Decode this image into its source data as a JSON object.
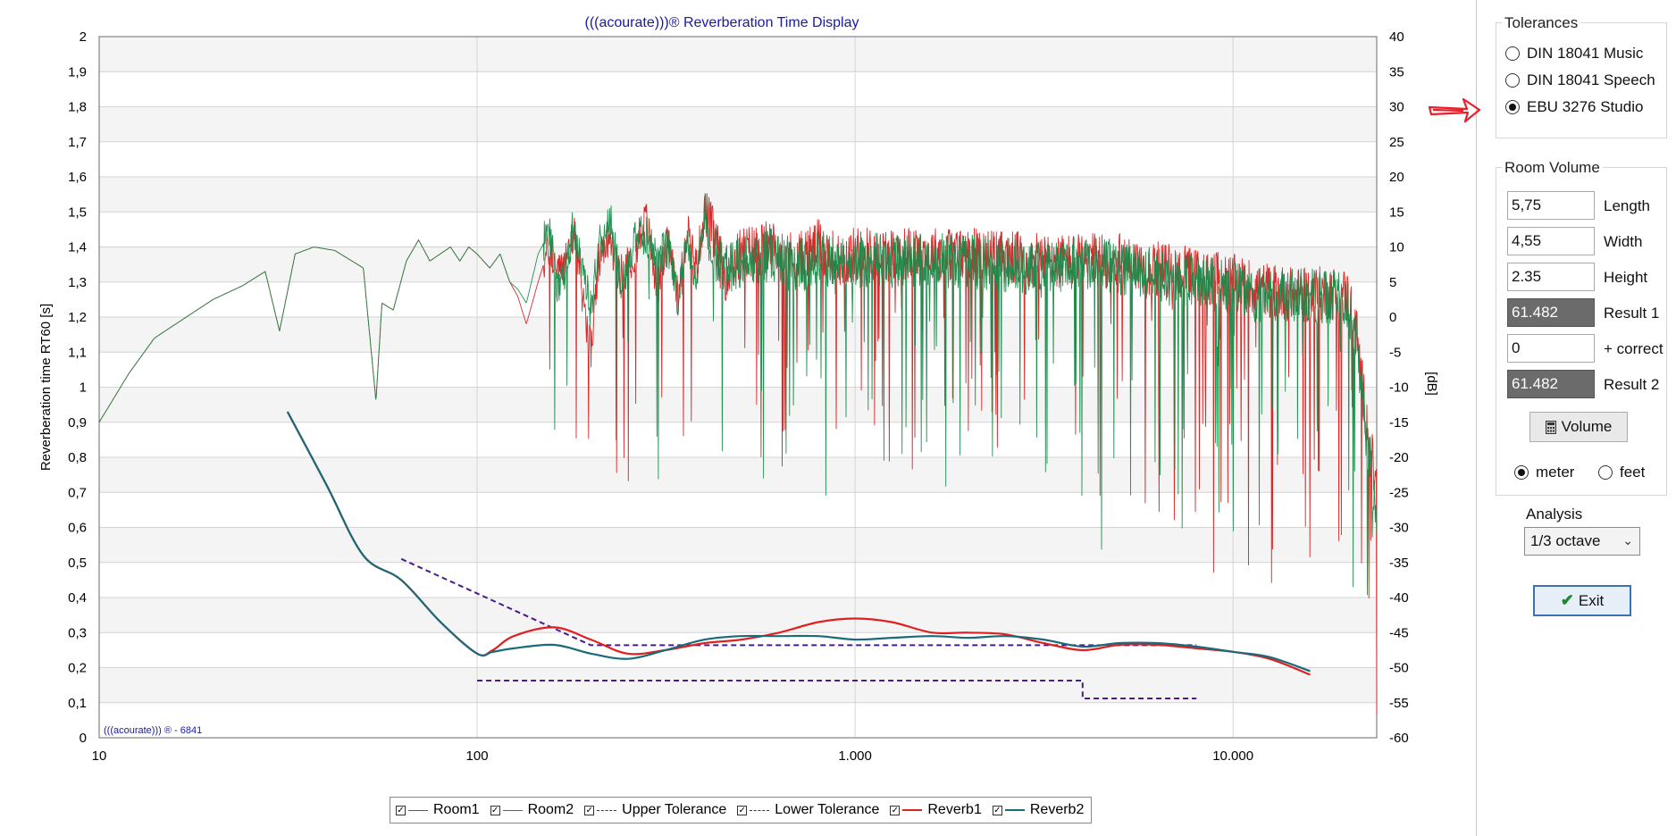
{
  "chart_data": {
    "type": "line",
    "title": "(((acourate)))® Reverberation Time Display",
    "watermark": "(((acourate))) ® - 6841",
    "x_scale": "log",
    "xlim": [
      10,
      24000
    ],
    "x_ticks": [
      {
        "value": 10,
        "label": "10"
      },
      {
        "value": 100,
        "label": "100"
      },
      {
        "value": 1000,
        "label": "1.000"
      },
      {
        "value": 10000,
        "label": "10.000"
      }
    ],
    "y_left": {
      "label": "Reverberation time RT60 [s]",
      "range": [
        0,
        2
      ],
      "ticks": [
        "0",
        "0,1",
        "0,2",
        "0,3",
        "0,4",
        "0,5",
        "0,6",
        "0,7",
        "0,8",
        "0,9",
        "1",
        "1,1",
        "1,2",
        "1,3",
        "1,4",
        "1,5",
        "1,6",
        "1,7",
        "1,8",
        "1,9",
        "2"
      ]
    },
    "y_right": {
      "label": "[dB]",
      "range": [
        -60,
        40
      ],
      "ticks": [
        "40",
        "35",
        "30",
        "25",
        "20",
        "15",
        "10",
        "5",
        "0",
        "-5",
        "-10",
        "-15",
        "-20",
        "-25",
        "-30",
        "-35",
        "-40",
        "-45",
        "-50",
        "-55",
        "-60"
      ]
    },
    "grid": true,
    "legend_position": "bottom",
    "series": [
      {
        "name": "Room1",
        "axis": "right",
        "style": "thin",
        "color": "#d42020",
        "x": [
          10,
          12,
          14,
          17,
          20,
          24,
          27.5,
          30,
          33,
          37,
          42,
          50,
          54,
          56,
          60,
          65,
          70,
          75,
          85,
          90,
          95,
          100,
          108,
          115,
          122,
          128,
          135,
          145,
          155,
          165,
          180,
          200,
          210,
          225,
          240,
          260,
          280,
          300,
          320,
          340,
          360,
          380,
          400,
          420,
          450,
          500,
          600,
          700,
          800,
          900,
          1000,
          1500,
          2000,
          3000,
          4000,
          5000,
          6000,
          8000,
          10000,
          12000,
          15000,
          18000,
          20000,
          21000,
          22000,
          23000,
          24000
        ],
        "y": [
          -15,
          -8,
          -3,
          0,
          2.5,
          4.5,
          6.5,
          -2,
          9,
          10,
          9.5,
          7,
          -12,
          2,
          1,
          8,
          11,
          8,
          10,
          8,
          10,
          9,
          7,
          9,
          5,
          3,
          -1,
          5,
          10,
          6,
          12,
          -5,
          8,
          11,
          6,
          9,
          14,
          4,
          11,
          3,
          13,
          7,
          15,
          12,
          6,
          9,
          10,
          8,
          10,
          8,
          9,
          9,
          9,
          8,
          8,
          8,
          7,
          6,
          5,
          4,
          3,
          3.5,
          3,
          0,
          -10,
          -18,
          -25
        ]
      },
      {
        "name": "Room2",
        "axis": "right",
        "style": "thin",
        "color": "#1a8a4a",
        "x": [
          10,
          12,
          14,
          17,
          20,
          24,
          27.5,
          30,
          33,
          37,
          42,
          50,
          54,
          56,
          60,
          65,
          70,
          75,
          85,
          90,
          95,
          100,
          108,
          115,
          122,
          128,
          135,
          145,
          155,
          165,
          180,
          200,
          210,
          225,
          240,
          260,
          280,
          300,
          320,
          340,
          360,
          380,
          400,
          420,
          450,
          500,
          600,
          700,
          800,
          900,
          1000,
          1500,
          2000,
          3000,
          4000,
          5000,
          6000,
          8000,
          10000,
          12000,
          15000,
          18000,
          20000,
          21000,
          22000,
          23000,
          24000
        ],
        "y": [
          -15,
          -8,
          -3,
          0,
          2.5,
          4.5,
          6.5,
          -2,
          9,
          10,
          9.5,
          7,
          -12,
          2,
          1,
          8,
          11,
          8,
          10,
          8,
          10,
          9,
          7,
          9,
          5,
          4,
          2,
          9,
          12,
          3,
          13,
          1,
          10,
          14,
          4,
          11,
          12,
          8,
          10,
          2,
          11,
          6,
          14,
          10,
          7,
          8,
          9,
          7,
          9,
          7,
          8,
          8,
          8,
          7,
          8,
          7,
          6,
          5,
          4,
          3,
          3,
          3,
          2,
          -2,
          -12,
          -20,
          -30
        ]
      },
      {
        "name": "Upper Tolerance",
        "axis": "left",
        "style": "dashed",
        "color": "#4b1a8a",
        "x": [
          63,
          200,
          8000
        ],
        "y": [
          0.51,
          0.264,
          0.264
        ]
      },
      {
        "name": "Lower Tolerance",
        "axis": "left",
        "style": "dashed",
        "color": "#4b1a8a",
        "x": [
          100,
          4000,
          4000,
          8000
        ],
        "y": [
          0.163,
          0.163,
          0.112,
          0.112
        ]
      },
      {
        "name": "Reverb1",
        "axis": "left",
        "style": "thick",
        "color": "#e02020",
        "x": [
          31.5,
          40,
          50,
          63,
          80,
          100,
          110,
          125,
          160,
          200,
          250,
          315,
          400,
          500,
          630,
          800,
          1000,
          1250,
          1600,
          2000,
          2500,
          3150,
          4000,
          5000,
          6300,
          8000,
          10000,
          12500,
          16000
        ],
        "y": [
          0.93,
          0.72,
          0.52,
          0.45,
          0.33,
          0.24,
          0.25,
          0.29,
          0.315,
          0.28,
          0.24,
          0.25,
          0.27,
          0.28,
          0.3,
          0.33,
          0.34,
          0.33,
          0.3,
          0.3,
          0.295,
          0.27,
          0.25,
          0.265,
          0.265,
          0.255,
          0.245,
          0.225,
          0.18
        ]
      },
      {
        "name": "Reverb2",
        "axis": "left",
        "style": "thick",
        "color": "#1a6a7a",
        "x": [
          31.5,
          40,
          50,
          63,
          80,
          100,
          110,
          125,
          160,
          200,
          250,
          315,
          400,
          500,
          630,
          800,
          1000,
          1250,
          1600,
          2000,
          2500,
          3150,
          4000,
          5000,
          6300,
          8000,
          10000,
          12500,
          16000
        ],
        "y": [
          0.93,
          0.72,
          0.52,
          0.45,
          0.33,
          0.24,
          0.245,
          0.255,
          0.265,
          0.24,
          0.225,
          0.25,
          0.28,
          0.29,
          0.29,
          0.29,
          0.28,
          0.285,
          0.29,
          0.285,
          0.29,
          0.28,
          0.26,
          0.27,
          0.27,
          0.26,
          0.245,
          0.23,
          0.19
        ]
      }
    ]
  },
  "legend": [
    {
      "label": "Room1",
      "color": "#d42020",
      "style": "thin"
    },
    {
      "label": "Room2",
      "color": "#1a8a4a",
      "style": "thin"
    },
    {
      "label": "Upper Tolerance",
      "color": "#4b1a8a",
      "style": "dashed"
    },
    {
      "label": "Lower Tolerance",
      "color": "#4b1a8a",
      "style": "dashed"
    },
    {
      "label": "Reverb1",
      "color": "#e02020",
      "style": "thick"
    },
    {
      "label": "Reverb2",
      "color": "#1a6a7a",
      "style": "thick"
    }
  ],
  "panel": {
    "tolerances": {
      "title": "Tolerances",
      "options": [
        {
          "label": "DIN 18041 Music",
          "selected": false
        },
        {
          "label": "DIN 18041 Speech",
          "selected": false
        },
        {
          "label": "EBU 3276 Studio",
          "selected": true
        }
      ]
    },
    "room_volume": {
      "title": "Room Volume",
      "fields": [
        {
          "value": "5,75",
          "label": "Length",
          "readonly": false
        },
        {
          "value": "4,55",
          "label": "Width",
          "readonly": false
        },
        {
          "value": "2.35",
          "label": "Height",
          "readonly": false
        },
        {
          "value": "61.482",
          "label": "Result 1",
          "readonly": true
        },
        {
          "value": "0",
          "label": "+ correct",
          "readonly": false
        },
        {
          "value": "61.482",
          "label": "Result 2",
          "readonly": true
        }
      ],
      "volume_button": "Volume",
      "units": [
        {
          "label": "meter",
          "selected": true
        },
        {
          "label": "feet",
          "selected": false
        }
      ]
    },
    "analysis": {
      "label": "Analysis",
      "value": "1/3 octave"
    },
    "exit_button": "Exit",
    "annotation_color": "#e8202a"
  }
}
